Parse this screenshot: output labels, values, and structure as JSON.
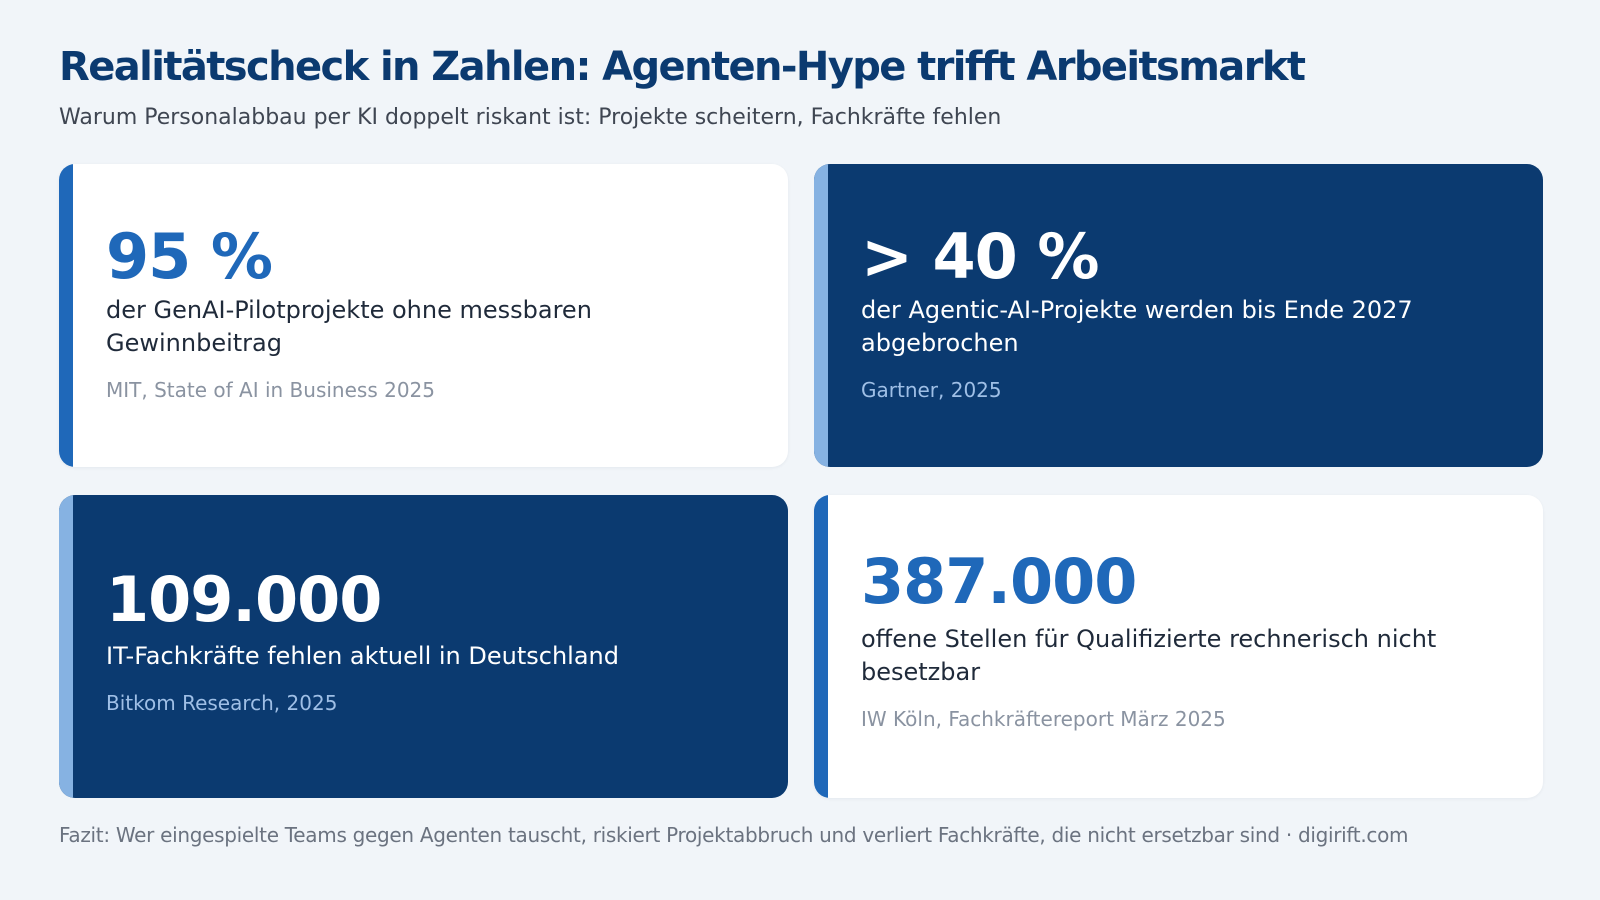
{
  "header": {
    "title": "Realitätscheck in Zahlen: Agenten-Hype trifft Arbeitsmarkt",
    "subtitle": "Warum Personalabbau per KI doppelt riskant ist: Projekte scheitern, Fachkräfte fehlen"
  },
  "cards": [
    {
      "stat": "95 %",
      "description": "der GenAI-Pilotprojekte ohne messbaren Gewinnbeitrag",
      "source": "MIT, State of AI in Business 2025",
      "theme": "light"
    },
    {
      "stat": "> 40 %",
      "description": "der Agentic-AI-Projekte werden bis Ende 2027 abgebrochen",
      "source": "Gartner, 2025",
      "theme": "dark"
    },
    {
      "stat": "109.000",
      "description": "IT-Fachkräfte fehlen aktuell in Deutschland",
      "source": "Bitkom Research, 2025",
      "theme": "dark"
    },
    {
      "stat": "387.000",
      "description": "offene Stellen für Qualifizierte rechnerisch nicht besetzbar",
      "source": "IW Köln, Fachkräftereport März 2025",
      "theme": "light"
    }
  ],
  "footer": {
    "text": "Fazit: Wer eingespielte Teams gegen Agenten tauscht, riskiert Projektabbruch und verliert Fachkräfte, die nicht ersetzbar sind · digirift.com"
  },
  "colors": {
    "background": "#f1f5f9",
    "navy": "#0b3a70",
    "accent_blue": "#1f68b9",
    "light_accent": "#86b2e2",
    "card_white": "#ffffff"
  }
}
